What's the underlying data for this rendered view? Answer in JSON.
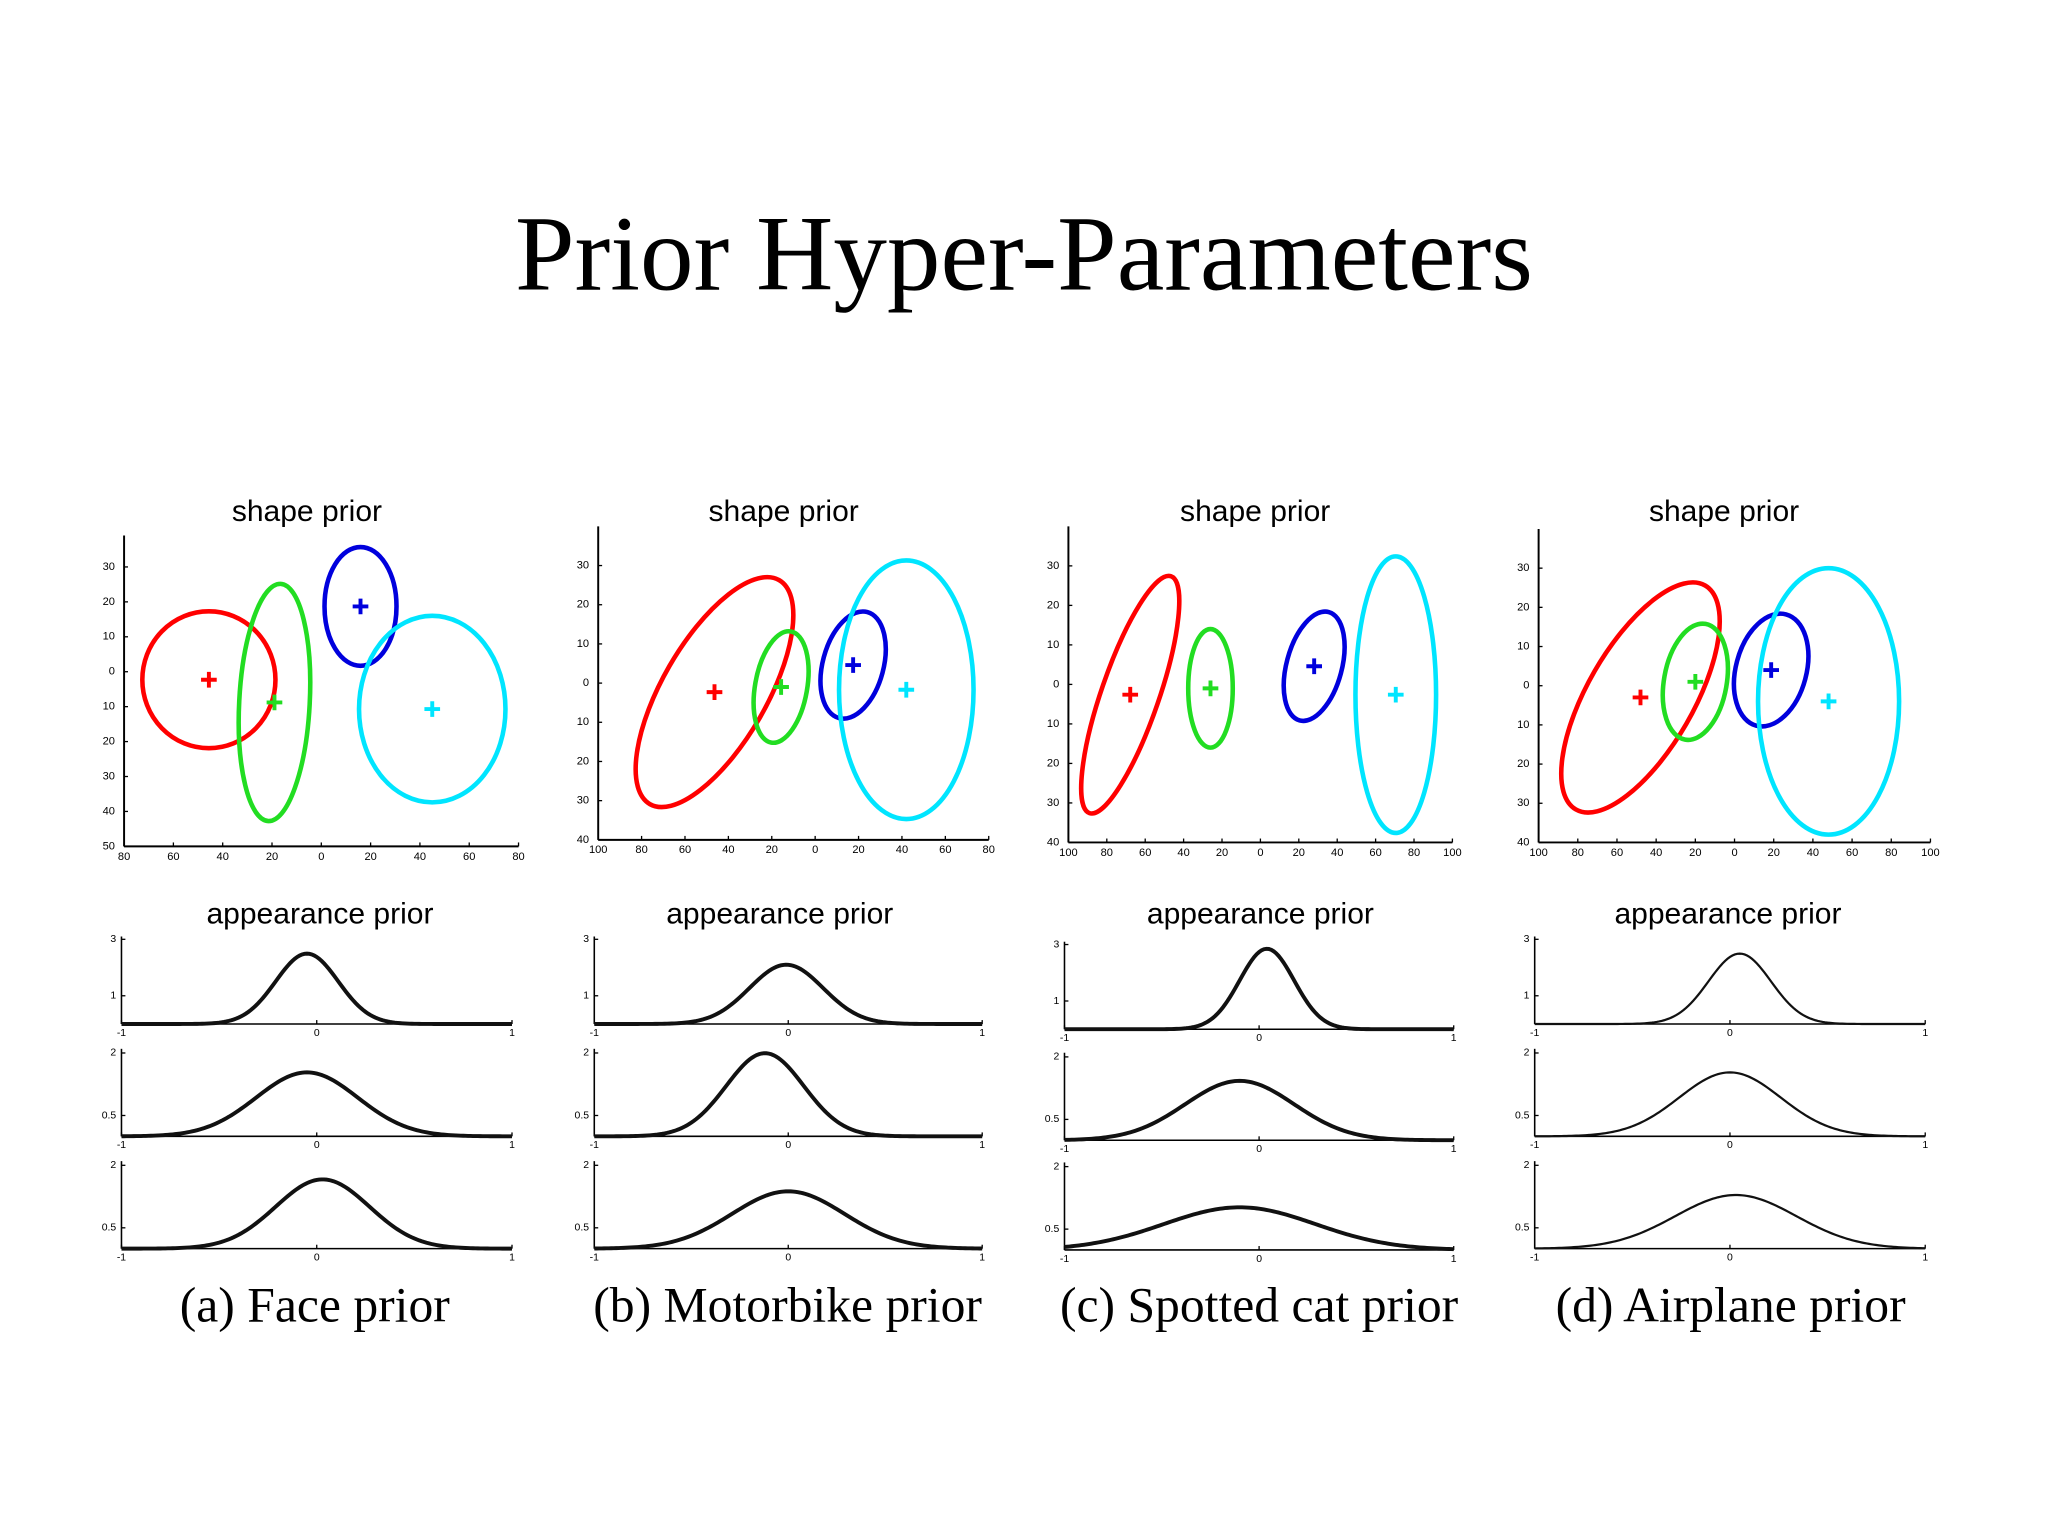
{
  "title": "Prior Hyper-Parameters",
  "panels": [
    {
      "caption": "(a) Face prior",
      "shape": {
        "title": "shape prior",
        "xlim": [
          -80,
          80
        ],
        "ylim": [
          -50,
          39
        ],
        "xticks": [
          {
            "value": -80,
            "label": "80"
          },
          {
            "value": -60,
            "label": "60"
          },
          {
            "value": -40,
            "label": "40"
          },
          {
            "value": -20,
            "label": "20"
          },
          0,
          20,
          40,
          60,
          80
        ],
        "yticks": [
          30,
          20,
          10,
          0,
          {
            "value": -10,
            "label": "10"
          },
          {
            "value": -20,
            "label": "20"
          },
          {
            "value": -30,
            "label": "30"
          },
          {
            "value": -40,
            "label": "40"
          },
          {
            "value": -50,
            "label": "50"
          }
        ],
        "ellipses": [
          {
            "color": "#ff0000",
            "cx": -45.6,
            "cy": -2.3,
            "rx": 27,
            "ry": 19.6,
            "angle": 0
          },
          {
            "color": "#22dd22",
            "cx": -19,
            "cy": -8.8,
            "rx": 14.3,
            "ry": 34,
            "angle": 3
          },
          {
            "color": "#0000dd",
            "cx": 15.9,
            "cy": 18.7,
            "rx": 14.6,
            "ry": 17,
            "angle": 0
          },
          {
            "color": "#00e5ff",
            "cx": 45,
            "cy": -10.7,
            "rx": 29.7,
            "ry": 26.7,
            "angle": 0
          }
        ]
      },
      "appearance": {
        "title": "appearance prior",
        "plots": [
          {
            "xlim": [
              -1,
              1
            ],
            "ylim": [
              0,
              3.1
            ],
            "xticks": [
              -1,
              0,
              1
            ],
            "yticks": [
              1,
              3
            ],
            "mean": -0.05,
            "sd": 0.16
          },
          {
            "xlim": [
              -1,
              1
            ],
            "ylim": [
              0,
              2.1
            ],
            "xticks": [
              -1,
              0,
              1
            ],
            "yticks": [
              0.5,
              2
            ],
            "mean": -0.05,
            "sd": 0.26
          },
          {
            "xlim": [
              -1,
              1
            ],
            "ylim": [
              0,
              2.1
            ],
            "xticks": [
              -1,
              0,
              1
            ],
            "yticks": [
              0.5,
              2
            ],
            "mean": 0.03,
            "sd": 0.24
          }
        ]
      }
    },
    {
      "caption": "(b) Motorbike prior",
      "shape": {
        "title": "shape prior",
        "xlim": [
          -100,
          80
        ],
        "ylim": [
          -40,
          40
        ],
        "xticks": [
          {
            "value": -100,
            "label": "100"
          },
          {
            "value": -80,
            "label": "80"
          },
          {
            "value": -60,
            "label": "60"
          },
          {
            "value": -40,
            "label": "40"
          },
          {
            "value": -20,
            "label": "20"
          },
          0,
          20,
          40,
          60,
          80
        ],
        "yticks": [
          30,
          20,
          10,
          0,
          {
            "value": -10,
            "label": "10"
          },
          {
            "value": -20,
            "label": "20"
          },
          {
            "value": -30,
            "label": "30"
          },
          {
            "value": -40,
            "label": "40"
          }
        ],
        "ellipses": [
          {
            "color": "#ff0000",
            "cx": -46.4,
            "cy": -2.3,
            "rx": 24,
            "ry": 33,
            "angle": 30
          },
          {
            "color": "#22dd22",
            "cx": -15.7,
            "cy": -1,
            "rx": 12,
            "ry": 14.4,
            "angle": 10
          },
          {
            "color": "#0000dd",
            "cx": 17.5,
            "cy": 4.6,
            "rx": 14,
            "ry": 14,
            "angle": 15
          },
          {
            "color": "#00e5ff",
            "cx": 42,
            "cy": -1.7,
            "rx": 31,
            "ry": 33,
            "angle": 0
          }
        ]
      },
      "appearance": {
        "title": "appearance prior",
        "plots": [
          {
            "xlim": [
              -1,
              1
            ],
            "ylim": [
              0,
              3.1
            ],
            "xticks": [
              -1,
              0,
              1
            ],
            "yticks": [
              1,
              3
            ],
            "mean": -0.01,
            "sd": 0.19
          },
          {
            "xlim": [
              -1,
              1
            ],
            "ylim": [
              0,
              2.1
            ],
            "xticks": [
              -1,
              0,
              1
            ],
            "yticks": [
              0.5,
              2
            ],
            "mean": -0.12,
            "sd": 0.2
          },
          {
            "xlim": [
              -1,
              1
            ],
            "ylim": [
              0,
              2.1
            ],
            "xticks": [
              -1,
              0,
              1
            ],
            "yticks": [
              0.5,
              2
            ],
            "mean": 0,
            "sd": 0.29
          }
        ]
      }
    },
    {
      "caption": "(c) Spotted cat prior",
      "shape": {
        "title": "shape prior",
        "xlim": [
          -100,
          100
        ],
        "ylim": [
          -40,
          40
        ],
        "xticks": [
          {
            "value": -100,
            "label": "100"
          },
          {
            "value": -80,
            "label": "80"
          },
          {
            "value": -60,
            "label": "60"
          },
          {
            "value": -40,
            "label": "40"
          },
          {
            "value": -20,
            "label": "20"
          },
          0,
          20,
          40,
          60,
          80,
          100
        ],
        "yticks": [
          30,
          20,
          10,
          0,
          {
            "value": -10,
            "label": "10"
          },
          {
            "value": -20,
            "label": "20"
          },
          {
            "value": -30,
            "label": "30"
          },
          {
            "value": -40,
            "label": "40"
          }
        ],
        "ellipses": [
          {
            "color": "#ff0000",
            "cx": -67.8,
            "cy": -2.6,
            "rx": 15,
            "ry": 31.7,
            "angle": 19
          },
          {
            "color": "#22dd22",
            "cx": -26,
            "cy": -1,
            "rx": 11.6,
            "ry": 15,
            "angle": 0
          },
          {
            "color": "#0000dd",
            "cx": 28,
            "cy": 4.6,
            "rx": 14.4,
            "ry": 14.2,
            "angle": 15
          },
          {
            "color": "#00e5ff",
            "cx": 70.5,
            "cy": -2.6,
            "rx": 21,
            "ry": 35,
            "angle": 0
          }
        ]
      },
      "appearance": {
        "title": "appearance prior",
        "plots": [
          {
            "xlim": [
              -1,
              1
            ],
            "ylim": [
              0,
              3.1
            ],
            "xticks": [
              -1,
              0,
              1
            ],
            "yticks": [
              1,
              3
            ],
            "mean": 0.04,
            "sd": 0.14
          },
          {
            "xlim": [
              -1,
              1
            ],
            "ylim": [
              0,
              2.1
            ],
            "xticks": [
              -1,
              0,
              1
            ],
            "yticks": [
              0.5,
              2
            ],
            "mean": -0.1,
            "sd": 0.28
          },
          {
            "xlim": [
              -1,
              1
            ],
            "ylim": [
              0,
              2.1
            ],
            "xticks": [
              -1,
              0,
              1
            ],
            "yticks": [
              0.5,
              2
            ],
            "mean": -0.1,
            "sd": 0.39
          }
        ]
      }
    },
    {
      "caption": "(d) Airplane prior",
      "shape": {
        "title": "shape prior",
        "xlim": [
          -100,
          100
        ],
        "ylim": [
          -40,
          40
        ],
        "xticks": [
          {
            "value": -100,
            "label": "100"
          },
          {
            "value": -80,
            "label": "80"
          },
          {
            "value": -60,
            "label": "60"
          },
          {
            "value": -40,
            "label": "40"
          },
          {
            "value": -20,
            "label": "20"
          },
          0,
          20,
          40,
          60,
          80,
          100
        ],
        "yticks": [
          30,
          20,
          10,
          0,
          {
            "value": -10,
            "label": "10"
          },
          {
            "value": -20,
            "label": "20"
          },
          {
            "value": -30,
            "label": "30"
          },
          {
            "value": -40,
            "label": "40"
          }
        ],
        "ellipses": [
          {
            "color": "#ff0000",
            "cx": -48,
            "cy": -3,
            "rx": 27,
            "ry": 33,
            "angle": 30
          },
          {
            "color": "#22dd22",
            "cx": -20,
            "cy": 1,
            "rx": 16,
            "ry": 15,
            "angle": 10
          },
          {
            "color": "#0000dd",
            "cx": 18.7,
            "cy": 4,
            "rx": 18,
            "ry": 14.7,
            "angle": 15
          },
          {
            "color": "#00e5ff",
            "cx": 48,
            "cy": -4,
            "rx": 36,
            "ry": 34,
            "angle": 0
          }
        ]
      },
      "appearance": {
        "title": "appearance prior",
        "plots": [
          {
            "xlim": [
              -1,
              1
            ],
            "ylim": [
              0,
              3.1
            ],
            "xticks": [
              -1,
              0,
              1
            ],
            "yticks": [
              1,
              3
            ],
            "mean": 0.05,
            "sd": 0.16
          },
          {
            "xlim": [
              -1,
              1
            ],
            "ylim": [
              0,
              2.1
            ],
            "xticks": [
              -1,
              0,
              1
            ],
            "yticks": [
              0.5,
              2
            ],
            "mean": 0,
            "sd": 0.26
          },
          {
            "xlim": [
              -1,
              1
            ],
            "ylim": [
              0,
              2.1
            ],
            "xticks": [
              -1,
              0,
              1
            ],
            "yticks": [
              0.5,
              2
            ],
            "mean": 0.03,
            "sd": 0.31
          }
        ]
      }
    }
  ]
}
